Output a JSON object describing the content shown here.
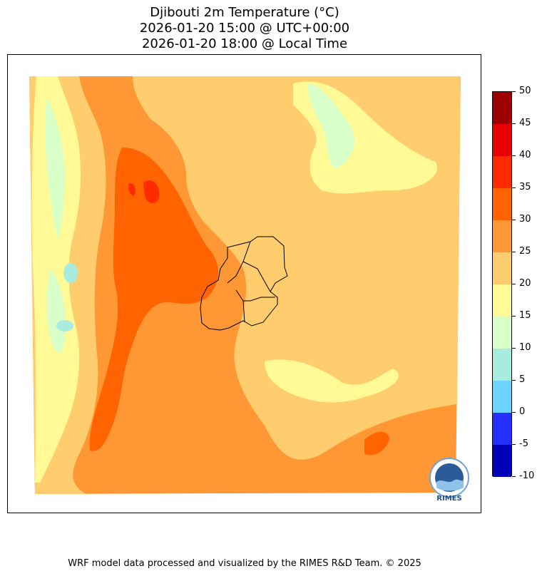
{
  "title": {
    "line1": "Djibouti 2m Temperature (°C)",
    "line2": "2026-01-20 15:00 @ UTC+00:00",
    "line3": "2026-01-20 18:00 @ Local Time"
  },
  "colorbar": {
    "ticks": [
      "50",
      "45",
      "40",
      "35",
      "30",
      "25",
      "20",
      "15",
      "10",
      "5",
      "0",
      "-5",
      "-10"
    ],
    "colors": [
      "#9d0000",
      "#e80000",
      "#ff2a00",
      "#ff6400",
      "#ff9834",
      "#ffcc6e",
      "#fffa96",
      "#d8ffc8",
      "#a8ece0",
      "#6cd2ff",
      "#2430ff",
      "#0000b6"
    ]
  },
  "logo": {
    "text": "RIMES"
  },
  "footer": "WRF model data processed and visualized by the RIMES R&D Team. © 2025"
}
